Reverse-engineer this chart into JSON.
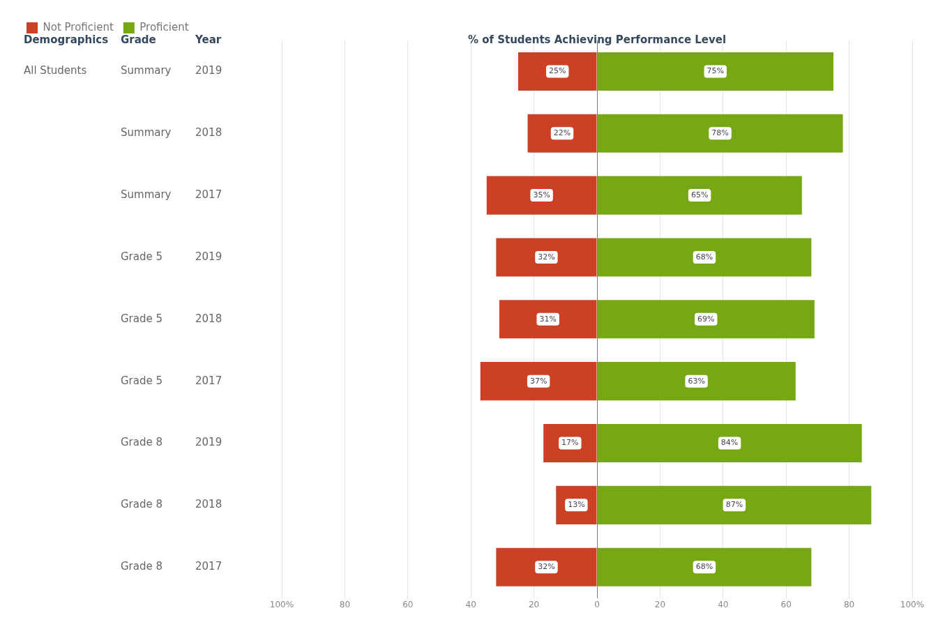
{
  "chart_data": {
    "type": "bar",
    "orientation": "horizontal",
    "title": "% of Students Achieving Performance Level",
    "categories": [
      "Summary",
      "Summary",
      "Summary",
      "Grade 5",
      "Grade 5",
      "Grade 5",
      "Grade 8",
      "Grade 8",
      "Grade 8"
    ],
    "y2_categories": [
      "2019",
      "2018",
      "2017",
      "2019",
      "2018",
      "2017",
      "2019",
      "2018",
      "2017"
    ],
    "annotations": [
      "Demographics",
      "Grade",
      "Year",
      "All Students"
    ],
    "series": [
      {
        "name": "Not Proficient",
        "color": "#cc4125",
        "base": [
          -25,
          -22,
          -35,
          -32,
          -31,
          -37,
          -17,
          -13,
          -32
        ],
        "values": [
          25,
          22,
          35,
          32,
          31,
          37,
          17,
          13,
          32
        ],
        "value_labels": [
          "25%",
          "22%",
          "35%",
          "32%",
          "31%",
          "37%",
          "17%",
          "13%",
          "32%"
        ]
      },
      {
        "name": "Proficient",
        "color": "#76a813",
        "values": [
          75,
          78,
          65,
          68,
          69,
          63,
          84,
          87,
          68
        ],
        "value_labels": [
          "75%",
          "78%",
          "65%",
          "68%",
          "69%",
          "63%",
          "84%",
          "87%",
          "68%"
        ]
      }
    ],
    "xlim": [
      -100,
      100
    ],
    "xticks": [
      {
        "value": -100,
        "label": "100%"
      },
      {
        "value": -80,
        "label": "80"
      },
      {
        "value": -60,
        "label": "60"
      },
      {
        "value": -40,
        "label": "40"
      },
      {
        "value": -20,
        "label": "20"
      },
      0,
      20,
      40,
      60,
      80,
      {
        "value": 100,
        "label": "100%"
      }
    ],
    "grid": "x",
    "legend": "top left"
  }
}
